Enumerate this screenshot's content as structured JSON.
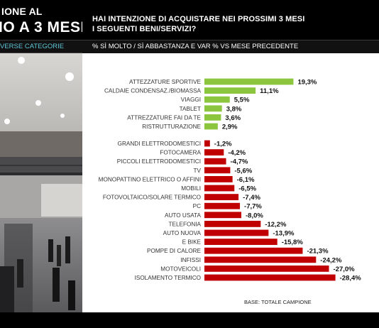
{
  "left_panel": {
    "title_line1": "IONE AL",
    "title_line2": "IO A 3 MESI",
    "subtitle": "VERSE CATEGORIE"
  },
  "header": {
    "line1": "HAI INTENZIONE DI ACQUISTARE NEI PROSSIMI 3 MESI",
    "line2": "I SEGUENTI BENI/SERVIZI?"
  },
  "subheader": "% SÌ MOLTO / SÌ ABBASTANZA E VAR % VS MESE PRECEDENTE",
  "base_note": "BASE: TOTALE CAMPIONE",
  "colors": {
    "positive": "#8cc63f",
    "negative": "#c00000"
  },
  "chart_data": {
    "type": "bar",
    "orientation": "horizontal",
    "title": "",
    "xlabel": "",
    "ylabel": "",
    "groups": [
      {
        "categories": [
          "ATTEZZATURE SPORTIVE",
          "CALDAIE CONDENSAZ./BIOMASSA",
          "VIAGGI",
          "TABLET",
          "ATTREZZATURE FAI DA TE",
          "RISTRUTTURAZIONE"
        ],
        "values": [
          19.3,
          11.1,
          5.5,
          3.8,
          3.6,
          2.9
        ],
        "labels": [
          "19,3%",
          "11,1%",
          "5,5%",
          "3,8%",
          "3,6%",
          "2,9%"
        ]
      },
      {
        "categories": [
          "GRANDI ELETTRODOMESTICI",
          "FOTOCAMERA",
          "PICCOLI ELETTRODOMESTICI",
          "TV",
          "MONOPATTINO ELETTRICO O AFFINI",
          "MOBILI",
          "FOTOVOLTAICO/SOLARE TERMICO",
          "PC",
          "AUTO USATA",
          "TELEFONIA",
          "AUTO NUOVA",
          "E BIKE",
          "POMPE DI CALORE",
          "INFISSI",
          "MOTOVEICOLI",
          "ISOLAMENTO TERMICO"
        ],
        "values": [
          -1.2,
          -4.2,
          -4.7,
          -5.6,
          -6.1,
          -6.5,
          -7.4,
          -7.7,
          -8.0,
          -12.2,
          -13.9,
          -15.8,
          -21.3,
          -24.2,
          -27.0,
          -28.4
        ],
        "labels": [
          "-1,2%",
          "-4,2%",
          "-4,7%",
          "-5,6%",
          "-6,1%",
          "-6,5%",
          "-7,4%",
          "-7,7%",
          "-8,0%",
          "-12,2%",
          "-13,9%",
          "-15,8%",
          "-21,3%",
          "-24,2%",
          "-27,0%",
          "-28,4%"
        ]
      }
    ]
  }
}
